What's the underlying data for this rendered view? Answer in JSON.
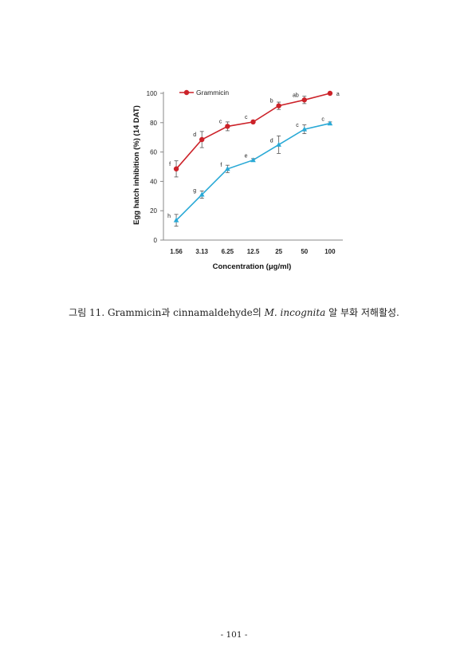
{
  "chart_data": {
    "type": "line",
    "categories": [
      "1.56",
      "3.13",
      "6.25",
      "12.5",
      "25",
      "50",
      "100"
    ],
    "ylabel": "Egg hatch inhibition (%) (14 DAT)",
    "xlabel": "Concentration (μg/ml)",
    "ylim": [
      0,
      100
    ],
    "yticks": [
      0,
      20,
      40,
      60,
      80,
      100
    ],
    "grid": false,
    "legend": "top-left",
    "series": [
      {
        "name": "Grammicin",
        "color": "#cc2229",
        "marker": "circle",
        "values": [
          48.5,
          68.5,
          77.5,
          80.5,
          91.5,
          95.5,
          100
        ],
        "errors": [
          5.5,
          5.5,
          3,
          1,
          2.5,
          2.5,
          0
        ],
        "letters": [
          "f",
          "d",
          "c",
          "c",
          "b",
          "ab",
          "a"
        ]
      },
      {
        "name": "",
        "color": "#29a9d6",
        "marker": "triangle",
        "values": [
          13.5,
          31,
          48.5,
          54.5,
          65,
          75.5,
          79.5
        ],
        "errors": [
          4,
          2.5,
          2.5,
          1,
          6,
          3,
          1
        ],
        "letters": [
          "h",
          "g",
          "f",
          "e",
          "d",
          "c",
          "c"
        ]
      }
    ]
  },
  "caption": {
    "prefix": "그림 11. Grammicin과 cinnamaldehyde의 ",
    "species": "M. incognita",
    "suffix": " 알 부화 저해활성."
  },
  "page_number": "- 101 -"
}
